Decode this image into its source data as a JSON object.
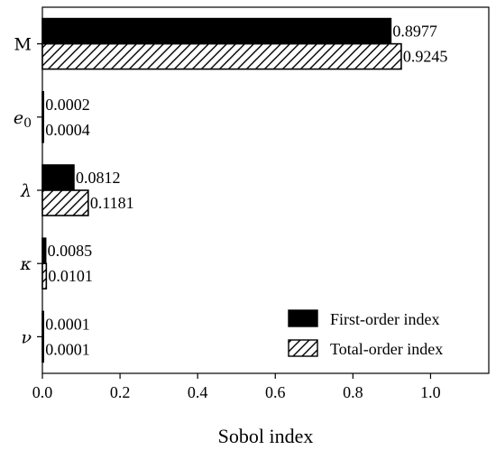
{
  "chart_data": {
    "type": "bar",
    "orientation": "horizontal",
    "categories": [
      "M",
      "e0",
      "λ",
      "κ",
      "ν"
    ],
    "category_display": [
      {
        "main": "M",
        "sub": "",
        "italic": false
      },
      {
        "main": "e",
        "sub": "0",
        "italic": true
      },
      {
        "main": "λ",
        "sub": "",
        "italic": true
      },
      {
        "main": "κ",
        "sub": "",
        "italic": true
      },
      {
        "main": "ν",
        "sub": "",
        "italic": true
      }
    ],
    "series": [
      {
        "name": "First-order index",
        "values": [
          0.8977,
          0.0002,
          0.0812,
          0.0085,
          0.0001
        ],
        "labels": [
          "0.8977",
          "0.0002",
          "0.0812",
          "0.0085",
          "0.0001"
        ],
        "fill": "solid",
        "color": "#000000"
      },
      {
        "name": "Total-order index",
        "values": [
          0.9245,
          0.0004,
          0.1181,
          0.0101,
          0.0001
        ],
        "labels": [
          "0.9245",
          "0.0004",
          "0.1181",
          "0.0101",
          "0.0001"
        ],
        "fill": "hatch",
        "color": "#000000"
      }
    ],
    "xlabel": "Sobol index",
    "ylabel": "",
    "xlim": [
      0,
      1.15
    ],
    "xticks": [
      0.0,
      0.2,
      0.4,
      0.6,
      0.8,
      1.0
    ],
    "xtick_labels": [
      "0.0",
      "0.2",
      "0.4",
      "0.6",
      "0.8",
      "1.0"
    ],
    "grid": false,
    "legend_position": "bottom-right"
  }
}
